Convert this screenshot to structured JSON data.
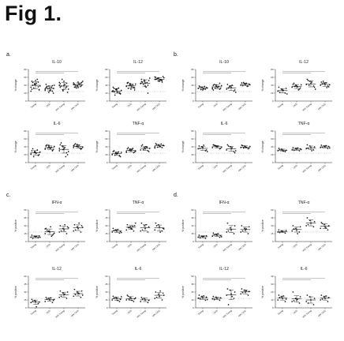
{
  "figure": {
    "title": "Fig 1."
  },
  "panels": [
    {
      "letter": "a."
    },
    {
      "letter": "b."
    },
    {
      "letter": "c."
    },
    {
      "letter": "d."
    }
  ],
  "chart_data": [
    {
      "type": "scatter",
      "panel": "a",
      "title": "IL-10",
      "ylabel": "% change",
      "categories": [
        "Young",
        "OLD",
        "HIV Young",
        "HIV OLD"
      ],
      "ylim": [
        0,
        80
      ],
      "series": [
        {
          "values": [
            [
              35,
              42,
              48,
              30,
              52,
              28,
              40,
              45,
              38,
              33,
              55,
              25,
              44,
              36,
              50,
              41,
              29,
              47
            ],
            [
              30,
              38,
              25,
              42,
              33,
              20,
              36,
              28,
              40,
              31,
              35,
              27,
              22,
              39,
              34,
              26,
              32,
              37
            ],
            [
              40,
              28,
              45,
              35,
              50,
              22,
              38,
              42,
              30,
              55,
              33,
              47,
              26,
              36,
              44,
              39
            ],
            [
              42,
              38,
              45,
              35,
              48,
              40,
              36,
              44,
              50,
              33,
              41,
              46,
              39,
              37,
              43,
              34,
              47,
              40
            ]
          ]
        }
      ]
    },
    {
      "type": "scatter",
      "panel": "a",
      "title": "IL-12",
      "ylabel": "% change",
      "categories": [
        "Young",
        "OLD",
        "HIV Young",
        "HIV OLD"
      ],
      "ylim": [
        0,
        80
      ],
      "series": [
        {
          "values": [
            [
              25,
              30,
              20,
              35,
              28,
              18,
              32,
              22,
              27,
              15,
              33,
              24,
              29,
              21,
              26,
              31,
              19,
              23
            ],
            [
              38,
              42,
              35,
              45,
              40,
              33,
              47,
              36,
              43,
              39,
              41,
              37,
              44,
              34,
              46,
              30,
              28,
              32
            ],
            [
              45,
              50,
              40,
              55,
              38,
              52,
              48,
              35,
              58,
              42,
              47,
              44,
              53,
              20,
              49,
              46
            ],
            [
              55,
              58,
              52,
              60,
              50,
              62,
              56,
              54,
              59,
              57,
              53,
              61,
              51,
              48,
              55
            ]
          ]
        }
      ]
    },
    {
      "type": "scatter",
      "panel": "a",
      "title": "IL-6",
      "ylabel": "% change",
      "categories": [
        "Young",
        "OLD",
        "HIV Young",
        "HIV OLD"
      ],
      "ylim": [
        0,
        80
      ],
      "series": [
        {
          "values": [
            [
              22,
              28,
              18,
              30,
              25,
              20,
              35,
              24,
              27,
              15,
              32,
              21,
              26
            ],
            [
              35,
              40,
              30,
              42,
              38,
              33,
              45,
              36,
              41,
              37,
              39,
              34,
              44,
              31,
              43
            ],
            [
              30,
              40,
              25,
              45,
              35,
              20,
              50,
              38,
              28,
              42,
              15,
              36,
              33
            ],
            [
              38,
              42,
              35,
              45,
              40,
              36,
              48,
              44,
              39,
              41,
              37,
              43,
              46,
              34
            ]
          ]
        }
      ]
    },
    {
      "type": "scatter",
      "panel": "a",
      "title": "TNF-α",
      "ylabel": "% change",
      "categories": [
        "Young",
        "OLD",
        "HIV Young",
        "HIV OLD"
      ],
      "ylim": [
        0,
        80
      ],
      "series": [
        {
          "values": [
            [
              20,
              25,
              18,
              28,
              22,
              15,
              30,
              24,
              26,
              19,
              27,
              21,
              23,
              17
            ],
            [
              28,
              32,
              25,
              35,
              30,
              27,
              38,
              33,
              29,
              31,
              36,
              26,
              34
            ],
            [
              32,
              38,
              30,
              42,
              35,
              28,
              45,
              40,
              36,
              33,
              39
            ],
            [
              40,
              45,
              38,
              48,
              42,
              44,
              46,
              41,
              43,
              39,
              47,
              37
            ]
          ]
        }
      ]
    },
    {
      "type": "scatter",
      "panel": "b",
      "title": "IL-10",
      "ylabel": "% change",
      "categories": [
        "Young",
        "OLD",
        "HIV Young",
        "HIV OLD"
      ],
      "ylim": [
        0,
        80
      ],
      "series": [
        {
          "values": [
            [
              32,
              35,
              30,
              38,
              28,
              34,
              36,
              31,
              33,
              29,
              37
            ],
            [
              34,
              38,
              30,
              40,
              36,
              32,
              42,
              35,
              39,
              33,
              37,
              31,
              41,
              45,
              28
            ],
            [
              30,
              38,
              25,
              42,
              35,
              28,
              33,
              40,
              22,
              36
            ],
            [
              40,
              44,
              38,
              46,
              42,
              43,
              39,
              45,
              41,
              47,
              37
            ]
          ]
        }
      ]
    },
    {
      "type": "scatter",
      "panel": "b",
      "title": "IL-12",
      "ylabel": "% change",
      "categories": [
        "Young",
        "OLD",
        "HIV Young",
        "HIV OLD"
      ],
      "ylim": [
        0,
        80
      ],
      "series": [
        {
          "values": [
            [
              25,
              30,
              20,
              35,
              28,
              32,
              22,
              27,
              18
            ],
            [
              35,
              40,
              30,
              42,
              38,
              33,
              45,
              36,
              41,
              37,
              28
            ],
            [
              42,
              50,
              38,
              55,
              45,
              35,
              52,
              48,
              30,
              40
            ],
            [
              40,
              45,
              38,
              48,
              42,
              36,
              44,
              46,
              41,
              50,
              34
            ]
          ]
        }
      ]
    },
    {
      "type": "scatter",
      "panel": "b",
      "title": "IL-6",
      "ylabel": "% change",
      "categories": [
        "Young",
        "OLD",
        "HIV Young",
        "HIV OLD"
      ],
      "ylim": [
        0,
        80
      ],
      "series": [
        {
          "values": [
            [
              35,
              40,
              30,
              42,
              38,
              32,
              36,
              44,
              28
            ],
            [
              38,
              42,
              35,
              45,
              40,
              36,
              44,
              41,
              39,
              43
            ],
            [
              32,
              40,
              28,
              45,
              35,
              25,
              42,
              38,
              30
            ],
            [
              38,
              42,
              35,
              44,
              40,
              36,
              43,
              39,
              41,
              37
            ]
          ]
        }
      ]
    },
    {
      "type": "scatter",
      "panel": "b",
      "title": "TNF-α",
      "ylabel": "% change",
      "categories": [
        "Young",
        "OLD",
        "HIV Young",
        "HIV OLD"
      ],
      "ylim": [
        0,
        80
      ],
      "series": [
        {
          "values": [
            [
              30,
              34,
              28,
              36,
              32,
              31,
              33,
              29
            ],
            [
              32,
              36,
              30,
              38,
              34,
              35,
              31,
              37,
              33
            ],
            [
              35,
              42,
              32,
              45,
              38,
              40,
              36,
              30
            ],
            [
              38,
              42,
              36,
              44,
              40,
              41,
              39,
              43,
              37
            ]
          ]
        }
      ]
    },
    {
      "type": "scatter",
      "panel": "c",
      "title": "IFN-α",
      "ylabel": "% positive",
      "categories": [
        "Young",
        "OLD",
        "HIV Young",
        "HIV OLD"
      ],
      "ylim": [
        0,
        60
      ],
      "series": [
        {
          "values": [
            [
              8,
              10,
              7,
              12,
              9,
              11,
              6,
              10,
              8
            ],
            [
              15,
              20,
              12,
              25,
              18,
              14,
              22,
              28,
              16,
              19,
              10,
              24
            ],
            [
              18,
              25,
              15,
              30,
              22,
              28,
              20,
              32,
              26
            ],
            [
              20,
              28,
              18,
              32,
              25,
              30,
              22,
              35,
              27
            ]
          ]
        }
      ]
    },
    {
      "type": "scatter",
      "panel": "c",
      "title": "TNF-α",
      "ylabel": "% positive",
      "categories": [
        "Young",
        "OLD",
        "HIV Young",
        "HIV OLD"
      ],
      "ylim": [
        0,
        60
      ],
      "series": [
        {
          "values": [
            [
              18,
              22,
              16,
              25,
              20,
              19,
              21,
              23,
              17
            ],
            [
              22,
              28,
              20,
              32,
              25,
              30,
              27,
              24,
              35,
              26,
              29
            ],
            [
              20,
              30,
              18,
              35,
              25,
              28,
              22,
              32
            ],
            [
              22,
              32,
              20,
              35,
              28,
              25,
              30,
              18,
              24
            ]
          ]
        }
      ]
    },
    {
      "type": "scatter",
      "panel": "c",
      "title": "IL-12",
      "ylabel": "% positive",
      "categories": [
        "Young",
        "OLD",
        "HIV Young",
        "HIV OLD"
      ],
      "ylim": [
        0,
        60
      ],
      "series": [
        {
          "values": [
            [
              10,
              14,
              8,
              16,
              12,
              11,
              13,
              2
            ],
            [
              12,
              18,
              10,
              20,
              15,
              14,
              17,
              19,
              16
            ],
            [
              20,
              28,
              18,
              32,
              25,
              30,
              22,
              26
            ],
            [
              22,
              30,
              20,
              35,
              28,
              32,
              25,
              27,
              24
            ]
          ]
        }
      ]
    },
    {
      "type": "scatter",
      "panel": "c",
      "title": "IL-6",
      "ylabel": "% positive",
      "categories": [
        "Young",
        "OLD",
        "HIV Young",
        "HIV OLD"
      ],
      "ylim": [
        0,
        60
      ],
      "series": [
        {
          "values": [
            [
              15,
              20,
              12,
              22,
              18,
              16,
              19,
              14,
              21
            ],
            [
              15,
              20,
              12,
              24,
              18,
              17,
              22,
              14,
              19,
              16
            ],
            [
              12,
              18,
              10,
              20,
              15,
              14,
              17
            ],
            [
              18,
              26,
              15,
              30,
              22,
              28,
              20,
              32,
              24
            ]
          ]
        }
      ]
    },
    {
      "type": "scatter",
      "panel": "d",
      "title": "IFN-α",
      "ylabel": "% positive",
      "categories": [
        "Young",
        "OLD",
        "HIV Young",
        "HIV OLD"
      ],
      "ylim": [
        0,
        60
      ],
      "series": [
        {
          "values": [
            [
              8,
              10,
              6,
              12,
              9,
              11,
              7,
              10
            ],
            [
              10,
              14,
              8,
              16,
              12,
              11,
              13,
              15,
              9
            ],
            [
              18,
              26,
              15,
              35,
              22,
              30,
              20
            ],
            [
              18,
              25,
              15,
              30,
              22,
              28,
              20,
              24
            ]
          ]
        }
      ]
    },
    {
      "type": "scatter",
      "panel": "d",
      "title": "TNF-α",
      "ylabel": "% positive",
      "categories": [
        "Young",
        "OLD",
        "HIV Young",
        "HIV OLD"
      ],
      "ylim": [
        0,
        60
      ],
      "series": [
        {
          "values": [
            [
              18,
              20,
              16,
              22,
              19,
              21,
              17
            ],
            [
              20,
              25,
              18,
              30,
              22,
              28,
              24,
              15
            ],
            [
              30,
              40,
              28,
              45,
              35,
              38,
              32
            ],
            [
              25,
              32,
              22,
              36,
              28,
              30,
              34,
              26
            ]
          ]
        }
      ]
    },
    {
      "type": "scatter",
      "panel": "d",
      "title": "IL-12",
      "ylabel": "% positive",
      "categories": [
        "Young",
        "OLD",
        "HIV Young",
        "HIV OLD"
      ],
      "ylim": [
        0,
        50
      ],
      "series": [
        {
          "values": [
            [
              15,
              18,
              12,
              20,
              16,
              17,
              14,
              19,
              13
            ],
            [
              14,
              17,
              12,
              18,
              15,
              16,
              13
            ],
            [
              20,
              28,
              15,
              30,
              22,
              25,
              5,
              18
            ],
            [
              22,
              28,
              20,
              30,
              25,
              26,
              24,
              27
            ]
          ]
        }
      ]
    },
    {
      "type": "scatter",
      "panel": "d",
      "title": "IL-6",
      "ylabel": "% positive",
      "categories": [
        "Young",
        "OLD",
        "HIV Young",
        "HIV OLD"
      ],
      "ylim": [
        0,
        40
      ],
      "series": [
        {
          "values": [
            [
              10,
              14,
              8,
              16,
              12,
              11,
              13,
              15
            ],
            [
              8,
              12,
              6,
              20,
              10,
              14,
              9,
              11
            ],
            [
              8,
              14,
              4,
              16,
              10,
              12,
              6
            ],
            [
              10,
              14,
              8,
              16,
              12,
              13,
              11,
              15
            ]
          ]
        }
      ]
    }
  ]
}
